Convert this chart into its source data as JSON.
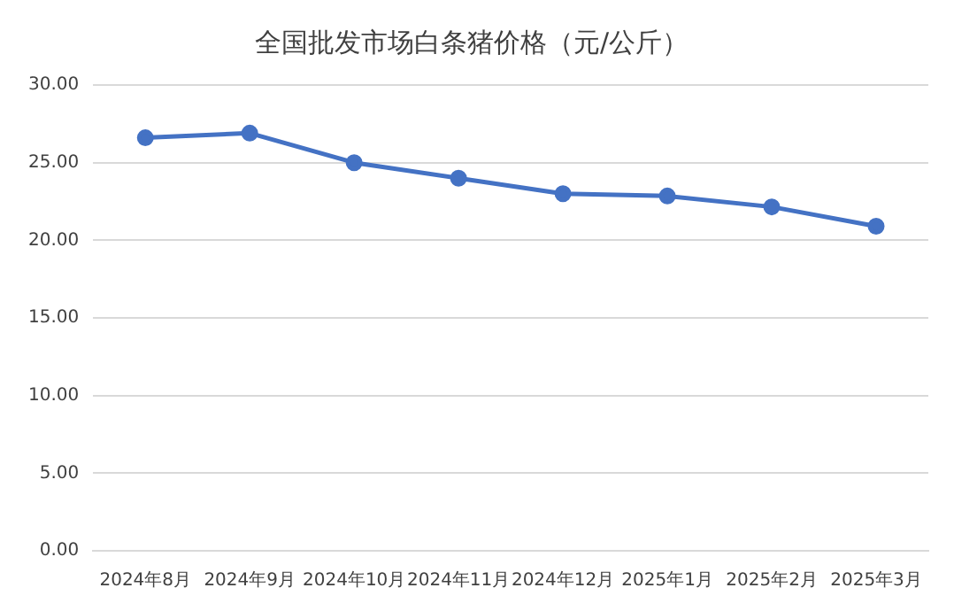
{
  "chart_data": {
    "type": "line",
    "title": "全国批发市场白条猪价格（元/公斤）",
    "categories": [
      "2024年8月",
      "2024年9月",
      "2024年10月",
      "2024年11月",
      "2024年12月",
      "2025年1月",
      "2025年2月",
      "2025年3月"
    ],
    "series": [
      {
        "color": "#4472c4",
        "values": [
          26.6,
          26.9,
          25.0,
          24.0,
          23.0,
          22.85,
          22.15,
          20.9
        ]
      }
    ],
    "ylim": [
      0,
      30
    ],
    "yticks": [
      {
        "value": 0,
        "label": "0.00"
      },
      {
        "value": 5,
        "label": "5.00"
      },
      {
        "value": 10,
        "label": "10.00"
      },
      {
        "value": 15,
        "label": "15.00"
      },
      {
        "value": 20,
        "label": "20.00"
      },
      {
        "value": 25,
        "label": "25.00"
      },
      {
        "value": 30,
        "label": "30.00"
      }
    ],
    "grid": "y",
    "legend": false,
    "marker": "circle",
    "line_style": "solid"
  }
}
